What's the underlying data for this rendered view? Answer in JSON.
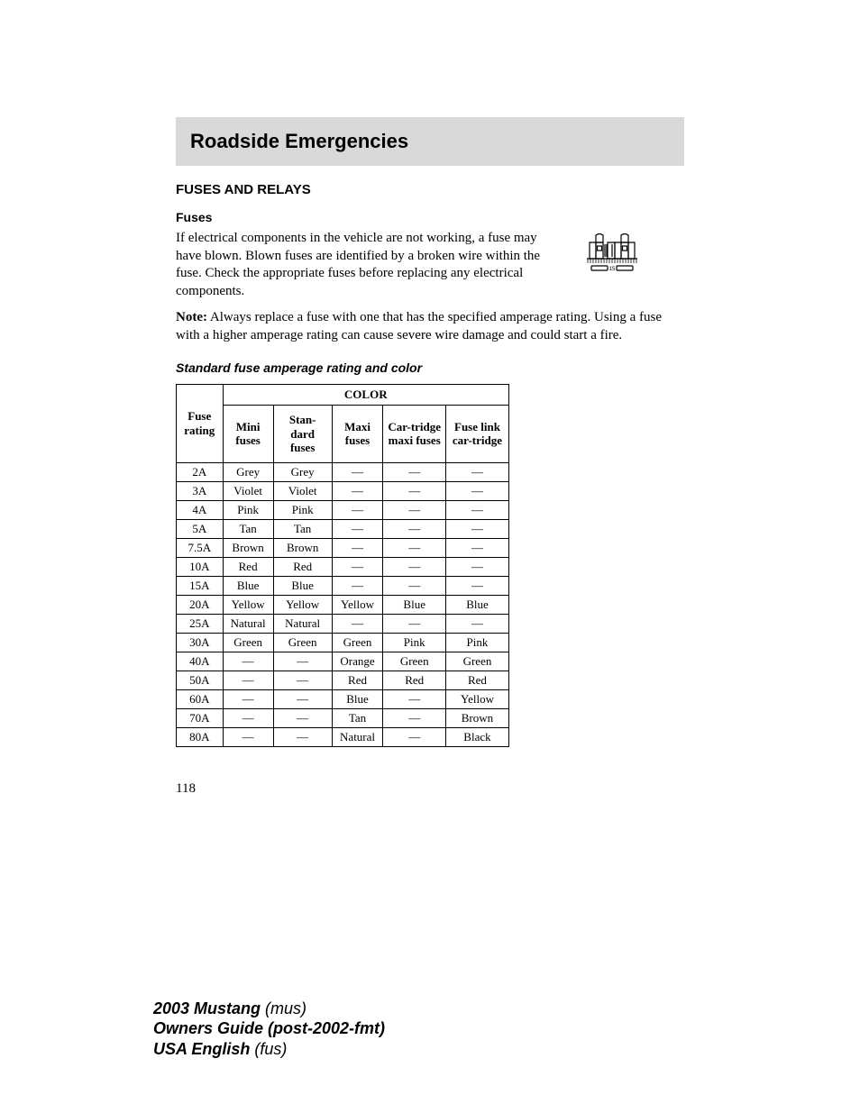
{
  "header": {
    "title": "Roadside Emergencies"
  },
  "section": {
    "heading": "FUSES AND RELAYS",
    "subheading": "Fuses",
    "body_para": "If electrical components in the vehicle are not working, a fuse may have blown. Blown fuses are identified by a broken wire within the fuse. Check the appropriate fuses before replacing any electrical components.",
    "note_label": "Note:",
    "note_text": " Always replace a fuse with one that has the specified amperage rating. Using a fuse with a higher amperage rating can cause severe wire damage and could start a fire."
  },
  "table_section": {
    "heading": "Standard fuse amperage rating and color",
    "color_header": "COLOR",
    "columns": [
      "Fuse rating",
      "Mini fuses",
      "Stan-dard fuses",
      "Maxi fuses",
      "Car-tridge maxi fuses",
      "Fuse link car-tridge"
    ],
    "rows": [
      [
        "2A",
        "Grey",
        "Grey",
        "—",
        "—",
        "—"
      ],
      [
        "3A",
        "Violet",
        "Violet",
        "—",
        "—",
        "—"
      ],
      [
        "4A",
        "Pink",
        "Pink",
        "—",
        "—",
        "—"
      ],
      [
        "5A",
        "Tan",
        "Tan",
        "—",
        "—",
        "—"
      ],
      [
        "7.5A",
        "Brown",
        "Brown",
        "—",
        "—",
        "—"
      ],
      [
        "10A",
        "Red",
        "Red",
        "—",
        "—",
        "—"
      ],
      [
        "15A",
        "Blue",
        "Blue",
        "—",
        "—",
        "—"
      ],
      [
        "20A",
        "Yellow",
        "Yellow",
        "Yellow",
        "Blue",
        "Blue"
      ],
      [
        "25A",
        "Natural",
        "Natural",
        "—",
        "—",
        "—"
      ],
      [
        "30A",
        "Green",
        "Green",
        "Green",
        "Pink",
        "Pink"
      ],
      [
        "40A",
        "—",
        "—",
        "Orange",
        "Green",
        "Green"
      ],
      [
        "50A",
        "—",
        "—",
        "Red",
        "Red",
        "Red"
      ],
      [
        "60A",
        "—",
        "—",
        "Blue",
        "—",
        "Yellow"
      ],
      [
        "70A",
        "—",
        "—",
        "Tan",
        "—",
        "Brown"
      ],
      [
        "80A",
        "—",
        "—",
        "Natural",
        "—",
        "Black"
      ]
    ]
  },
  "page_number": "118",
  "footer": {
    "line1_bold": "2003 Mustang",
    "line1_norm": " (mus)",
    "line2_bold": "Owners Guide (post-2002-fmt)",
    "line3_bold": "USA English",
    "line3_norm": " (fus)"
  },
  "icon": {
    "label_number": "15"
  }
}
